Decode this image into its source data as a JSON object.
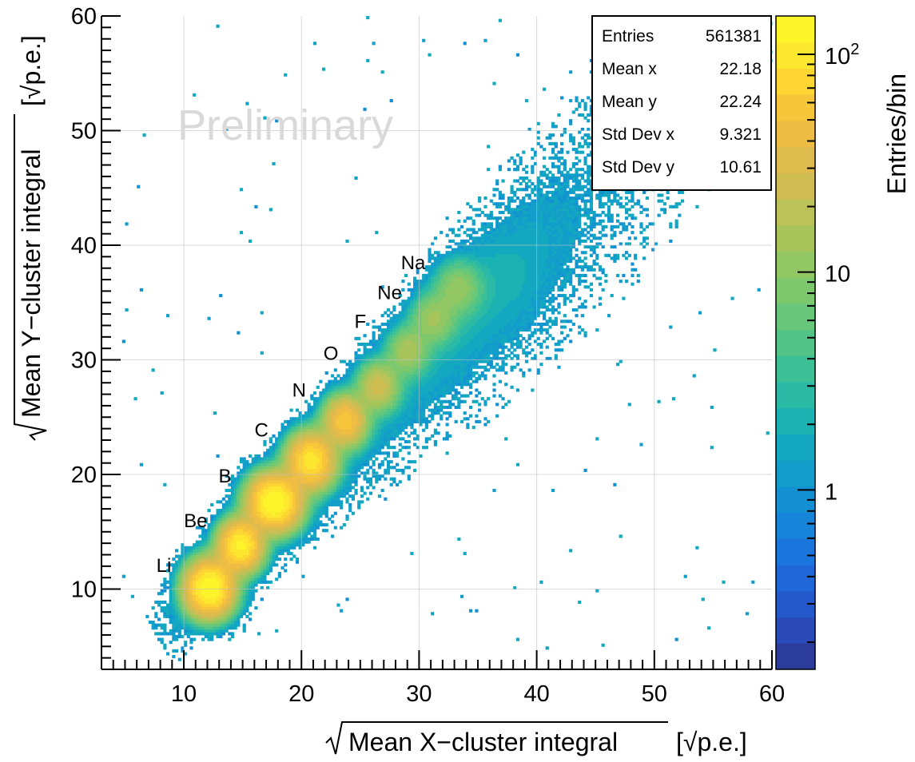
{
  "chart_data": {
    "type": "heatmap",
    "x_axis": {
      "label_main": "Mean X−cluster integral",
      "label_unit": "[√p.e.]",
      "range": [
        3,
        60
      ],
      "ticks": [
        10,
        20,
        30,
        40,
        50,
        60
      ]
    },
    "y_axis": {
      "label_main": "Mean Y−cluster integral",
      "label_unit": "[√p.e.]",
      "range": [
        3,
        60
      ],
      "ticks": [
        10,
        20,
        30,
        40,
        50,
        60
      ]
    },
    "colorbar": {
      "label": "Entries/bin",
      "scale": "log",
      "range": [
        0.15,
        150
      ],
      "ticks": [
        {
          "value": 1,
          "label": "1"
        },
        {
          "value": 10,
          "label": "10"
        },
        {
          "value": 100,
          "label": "10^2"
        }
      ],
      "colors": [
        "#2c3c9a",
        "#2a4ab8",
        "#2459cc",
        "#1f67d8",
        "#1a76dc",
        "#1684d8",
        "#1390d2",
        "#129dcb",
        "#13a8c0",
        "#1cb2b3",
        "#2bbaa5",
        "#3dc096",
        "#52c487",
        "#67c77a",
        "#7dc86d",
        "#92c764",
        "#a8c55c",
        "#bcc257",
        "#cfbd52",
        "#dfba4c",
        "#eebd43",
        "#f8c63a",
        "#fdd634",
        "#fde72f",
        "#fdf52a"
      ]
    },
    "stats": [
      {
        "label": "Entries",
        "value": "561381"
      },
      {
        "label": "Mean x",
        "value": "22.18"
      },
      {
        "label": "Mean y",
        "value": "22.24"
      },
      {
        "label": "Std Dev x",
        "value": "9.321"
      },
      {
        "label": "Std Dev y",
        "value": "10.61"
      }
    ],
    "watermark": "Preliminary",
    "grid": true,
    "clusters": [
      {
        "name": "Li",
        "x": 12.2,
        "y": 10.1,
        "peak": 150,
        "sx": 1.1,
        "sy": 1.3,
        "label_x": 8.3,
        "label_y": 11.5
      },
      {
        "name": "Be",
        "x": 14.8,
        "y": 13.8,
        "peak": 120,
        "sx": 1.0,
        "sy": 1.2,
        "label_x": 11.0,
        "label_y": 15.4
      },
      {
        "name": "B",
        "x": 17.7,
        "y": 17.6,
        "peak": 150,
        "sx": 1.2,
        "sy": 1.3,
        "label_x": 13.5,
        "label_y": 19.3
      },
      {
        "name": "C",
        "x": 20.8,
        "y": 21.2,
        "peak": 100,
        "sx": 1.1,
        "sy": 1.3,
        "label_x": 16.6,
        "label_y": 23.3
      },
      {
        "name": "N",
        "x": 23.7,
        "y": 24.7,
        "peak": 60,
        "sx": 1.0,
        "sy": 1.2,
        "label_x": 19.8,
        "label_y": 26.8
      },
      {
        "name": "O",
        "x": 26.5,
        "y": 27.7,
        "peak": 25,
        "sx": 1.0,
        "sy": 1.2,
        "label_x": 22.5,
        "label_y": 30.0
      },
      {
        "name": "F",
        "x": 29.0,
        "y": 30.8,
        "peak": 14,
        "sx": 1.0,
        "sy": 1.2,
        "label_x": 25.0,
        "label_y": 32.8
      },
      {
        "name": "Ne",
        "x": 31.2,
        "y": 33.6,
        "peak": 12,
        "sx": 1.1,
        "sy": 1.3,
        "label_x": 27.5,
        "label_y": 35.3
      },
      {
        "name": "Na",
        "x": 33.3,
        "y": 36.3,
        "peak": 10,
        "sx": 1.2,
        "sy": 1.4,
        "label_x": 29.5,
        "label_y": 37.9
      }
    ]
  }
}
